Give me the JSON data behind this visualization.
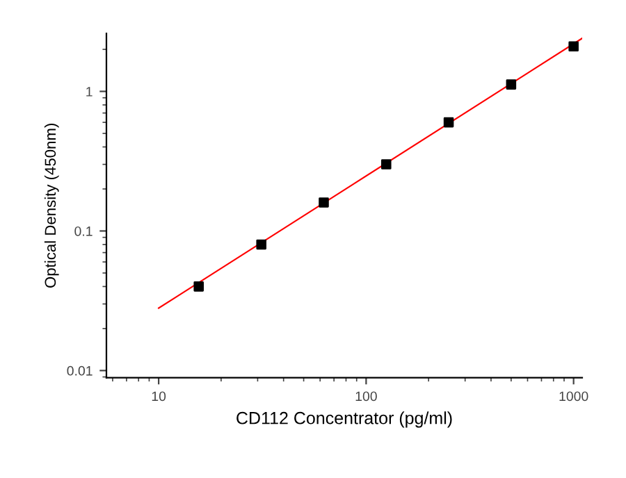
{
  "chart_data": {
    "type": "scatter",
    "xlabel": "CD112 Concentrator (pg/ml)",
    "ylabel": "Optical Density (450nm)",
    "log": "xy",
    "xlim": [
      5.6,
      1100
    ],
    "ylim": [
      0.0089,
      2.6
    ],
    "xticks": [
      10,
      100,
      1000
    ],
    "yticks": [
      0.01,
      0.1,
      1
    ],
    "grid": false,
    "legend": false,
    "series": [
      {
        "marker": "square",
        "color": "#000000",
        "x": [
          15.6,
          31.25,
          62.5,
          125,
          250,
          500,
          1000
        ],
        "values": [
          0.04,
          0.08,
          0.16,
          0.3,
          0.6,
          1.12,
          2.1
        ]
      },
      {
        "type": "line",
        "marker": "none",
        "color": "#ff0000",
        "x": [
          10,
          1100
        ],
        "values": [
          0.028,
          2.4
        ]
      }
    ]
  }
}
